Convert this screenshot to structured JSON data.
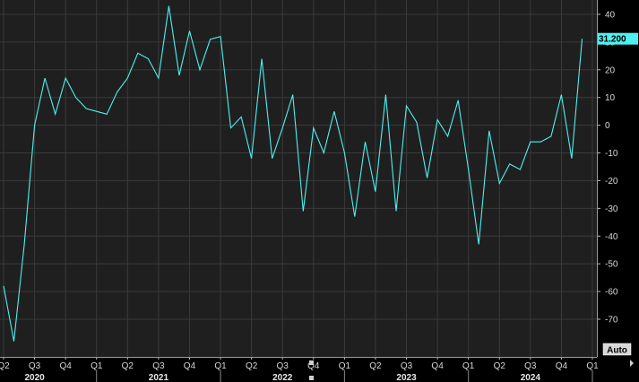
{
  "chart_data": {
    "type": "line",
    "title": "",
    "xlabel": "",
    "ylabel": "",
    "grid": true,
    "colors": {
      "background": "#000000",
      "plot_background": "#1f1f1f",
      "grid": "#3a3a3a",
      "line": "#4ff0f0",
      "last_label_bg": "#4ff0f0",
      "axis_text": "#d8d8d8"
    },
    "ylim": [
      -80,
      44
    ],
    "y_ticks": [
      40,
      30,
      20,
      10,
      0,
      -10,
      -20,
      -30,
      -40,
      -50,
      -60,
      -70
    ],
    "y_tick_labels": [
      "40",
      "30",
      "20",
      "10",
      "0",
      "-10",
      "-20",
      "-30",
      "-40",
      "-50",
      "-60",
      "-70"
    ],
    "xlim": [
      2020.25,
      2025.09
    ],
    "x_ticks": [
      2020.25,
      2020.5,
      2020.75,
      2021.0,
      2021.25,
      2021.5,
      2021.75,
      2022.0,
      2022.25,
      2022.5,
      2022.75,
      2023.0,
      2023.25,
      2023.5,
      2023.75,
      2024.0,
      2024.25,
      2024.5,
      2024.75,
      2025.0
    ],
    "x_tick_labels": [
      "Q2",
      "Q3",
      "Q4",
      "Q1",
      "Q2",
      "Q3",
      "Q4",
      "Q1",
      "Q2",
      "Q3",
      "Q4",
      "Q1",
      "Q2",
      "Q3",
      "Q4",
      "Q1",
      "Q2",
      "Q3",
      "Q4",
      "Q1"
    ],
    "year_labels": [
      {
        "label": "2020",
        "x": 2020.5
      },
      {
        "label": "2021",
        "x": 2021.5
      },
      {
        "label": "2022",
        "x": 2022.5
      },
      {
        "label": "2023",
        "x": 2023.5
      },
      {
        "label": "2024",
        "x": 2024.5
      }
    ],
    "series": [
      {
        "x": [
          2020.25,
          2020.333,
          2020.417,
          2020.5,
          2020.583,
          2020.667,
          2020.75,
          2020.833,
          2020.917,
          2021.0,
          2021.083,
          2021.167,
          2021.25,
          2021.333,
          2021.417,
          2021.5,
          2021.583,
          2021.667,
          2021.75,
          2021.833,
          2021.917,
          2022.0,
          2022.083,
          2022.167,
          2022.25,
          2022.333,
          2022.417,
          2022.5,
          2022.583,
          2022.667,
          2022.75,
          2022.833,
          2022.917,
          2023.0,
          2023.083,
          2023.167,
          2023.25,
          2023.333,
          2023.417,
          2023.5,
          2023.583,
          2023.667,
          2023.75,
          2023.833,
          2023.917,
          2024.0,
          2024.083,
          2024.167,
          2024.25,
          2024.333,
          2024.417,
          2024.5,
          2024.583,
          2024.667,
          2024.75,
          2024.833,
          2024.917
        ],
        "values": [
          -58,
          -78,
          -43,
          0,
          17,
          4,
          17,
          10,
          6,
          5,
          4,
          12,
          17,
          26,
          24,
          17,
          43,
          18,
          34,
          20,
          31,
          32,
          -1,
          3,
          -12,
          24,
          -12,
          -1,
          11,
          -31,
          -1,
          -10,
          5,
          -10,
          -33,
          -6,
          -24,
          11,
          -31,
          7,
          1,
          -19,
          2,
          -4,
          9,
          -16,
          -43,
          -2,
          -21,
          -14,
          -16,
          -6,
          -6,
          -4,
          11,
          -12,
          31.2
        ]
      }
    ],
    "last_value_label": "31.200",
    "auto_label": "Auto"
  }
}
